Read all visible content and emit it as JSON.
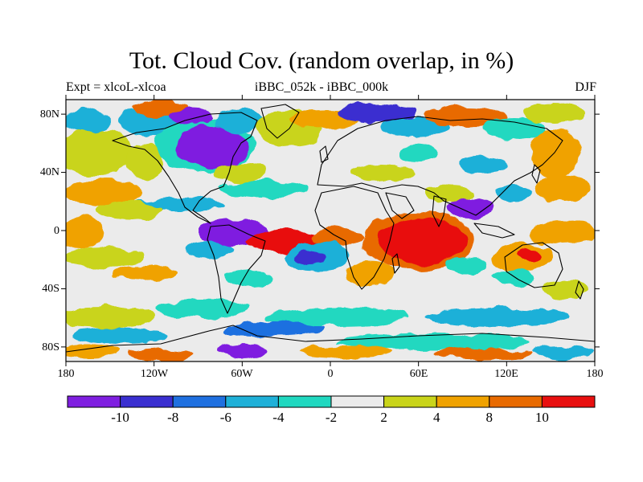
{
  "title": "Tot. Cloud Cov. (random overlap, in %)",
  "subtitle_left": "Expt = xlcoL-xlcoa",
  "subtitle_center": "iBBC_052k - iBBC_000k",
  "subtitle_right": "DJF",
  "y_ticks": [
    "80N",
    "40N",
    "0",
    "40S",
    "80S"
  ],
  "x_ticks": [
    "180",
    "120W",
    "60W",
    "0",
    "60E",
    "120E",
    "180"
  ],
  "colorbar": {
    "colors": [
      "#7f1fe0",
      "#3a2fd0",
      "#1f70e0",
      "#1fb0d8",
      "#20d8c0",
      "#ebebeb",
      "#c9d41a",
      "#f0a200",
      "#e86a00",
      "#e81010"
    ],
    "labels": [
      "-10",
      "-8",
      "-6",
      "-4",
      "-2",
      "2",
      "4",
      "8",
      "10"
    ]
  },
  "palette": {
    "neutral": "#ebebeb",
    "yellow": "#c9d41a",
    "orange": "#f0a200",
    "darkorange": "#e86a00",
    "red": "#e81010",
    "teal": "#20d8c0",
    "cyan": "#1fb0d8",
    "blue": "#1f70e0",
    "darkblue": "#3a2fd0",
    "purple": "#7f1fe0"
  }
}
